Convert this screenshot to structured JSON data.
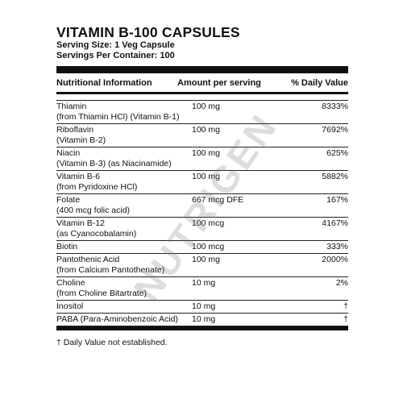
{
  "label": {
    "title": "VITAMIN B-100 CAPSULES",
    "serving_size": "Serving Size: 1 Veg Capsule",
    "servings_per_container": "Servings Per Container: 100",
    "columns": {
      "nutrient": "Nutritional Information",
      "amount": "Amount per serving",
      "dv": "% Daily Value"
    },
    "rows": [
      {
        "name": "Thiamin",
        "sub": "(from Thiamin HCl) (Vitamin B-1)",
        "amount": "100 mg",
        "dv": "8333%"
      },
      {
        "name": "Riboflavin",
        "sub": "(Vitamin B-2)",
        "amount": "100 mg",
        "dv": "7692%"
      },
      {
        "name": "Niacin",
        "sub": "(Vitamin B-3) (as Niacinamide)",
        "amount": "100 mg",
        "dv": "625%"
      },
      {
        "name": "Vitamin B-6",
        "sub": "(from Pyridoxine HCl)",
        "amount": "100 mg",
        "dv": "5882%"
      },
      {
        "name": "Folate",
        "sub": "(400 mcg folic acid)",
        "amount": "667 mcg DFE",
        "dv": "167%"
      },
      {
        "name": "Vitamin B-12",
        "sub": "(as Cyanocobalamin)",
        "amount": "100 mcg",
        "dv": "4167%"
      },
      {
        "name": "Biotin",
        "sub": "",
        "amount": "100 mcg",
        "dv": "333%"
      },
      {
        "name": "Pantothenic Acid",
        "sub": "(from Calcium Pantothenate)",
        "amount": "100 mg",
        "dv": "2000%"
      },
      {
        "name": "Choline",
        "sub": "(from Choline Bitartrate)",
        "amount": "10 mg",
        "dv": "2%"
      },
      {
        "name": "Inositol",
        "sub": "",
        "amount": "10 mg",
        "dv": "†"
      },
      {
        "name": "PABA (Para-Aminobenzoic Acid)",
        "sub": "",
        "amount": "10 mg",
        "dv": "†"
      }
    ],
    "footnote": "† Daily Value not established."
  }
}
